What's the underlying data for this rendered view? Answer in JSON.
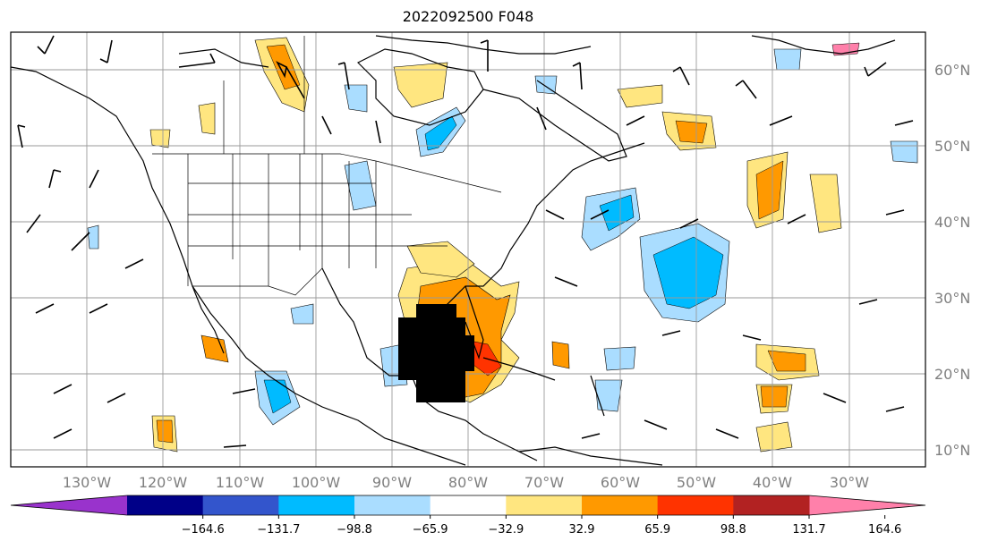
{
  "title": "2022092500 F048",
  "lon_labels": [
    "130°W",
    "120°W",
    "110°W",
    "100°W",
    "90°W",
    "80°W",
    "70°W",
    "60°W",
    "50°W",
    "40°W",
    "30°W"
  ],
  "lat_labels": [
    "60°N",
    "50°N",
    "40°N",
    "30°N",
    "20°N",
    "10°N"
  ],
  "colorbar": {
    "ticks": [
      "−164.6",
      "−131.7",
      "−98.8",
      "−65.9",
      "−32.9",
      "32.9",
      "65.9",
      "98.8",
      "131.7",
      "164.6"
    ],
    "colors": [
      "#9933cc",
      "#000088",
      "#3355cc",
      "#00bbff",
      "#aaddff",
      "#ffffff",
      "#ffe680",
      "#ff9900",
      "#ff3300",
      "#b22222",
      "#ff80aa"
    ]
  },
  "colors": {
    "coast": "#000000",
    "grid": "#9a9a9a",
    "warm_light": "#ffe680",
    "warm_mid": "#ff9900",
    "warm_strong": "#ff3300",
    "cold_light": "#aaddff",
    "cold_mid": "#00bbff"
  }
}
